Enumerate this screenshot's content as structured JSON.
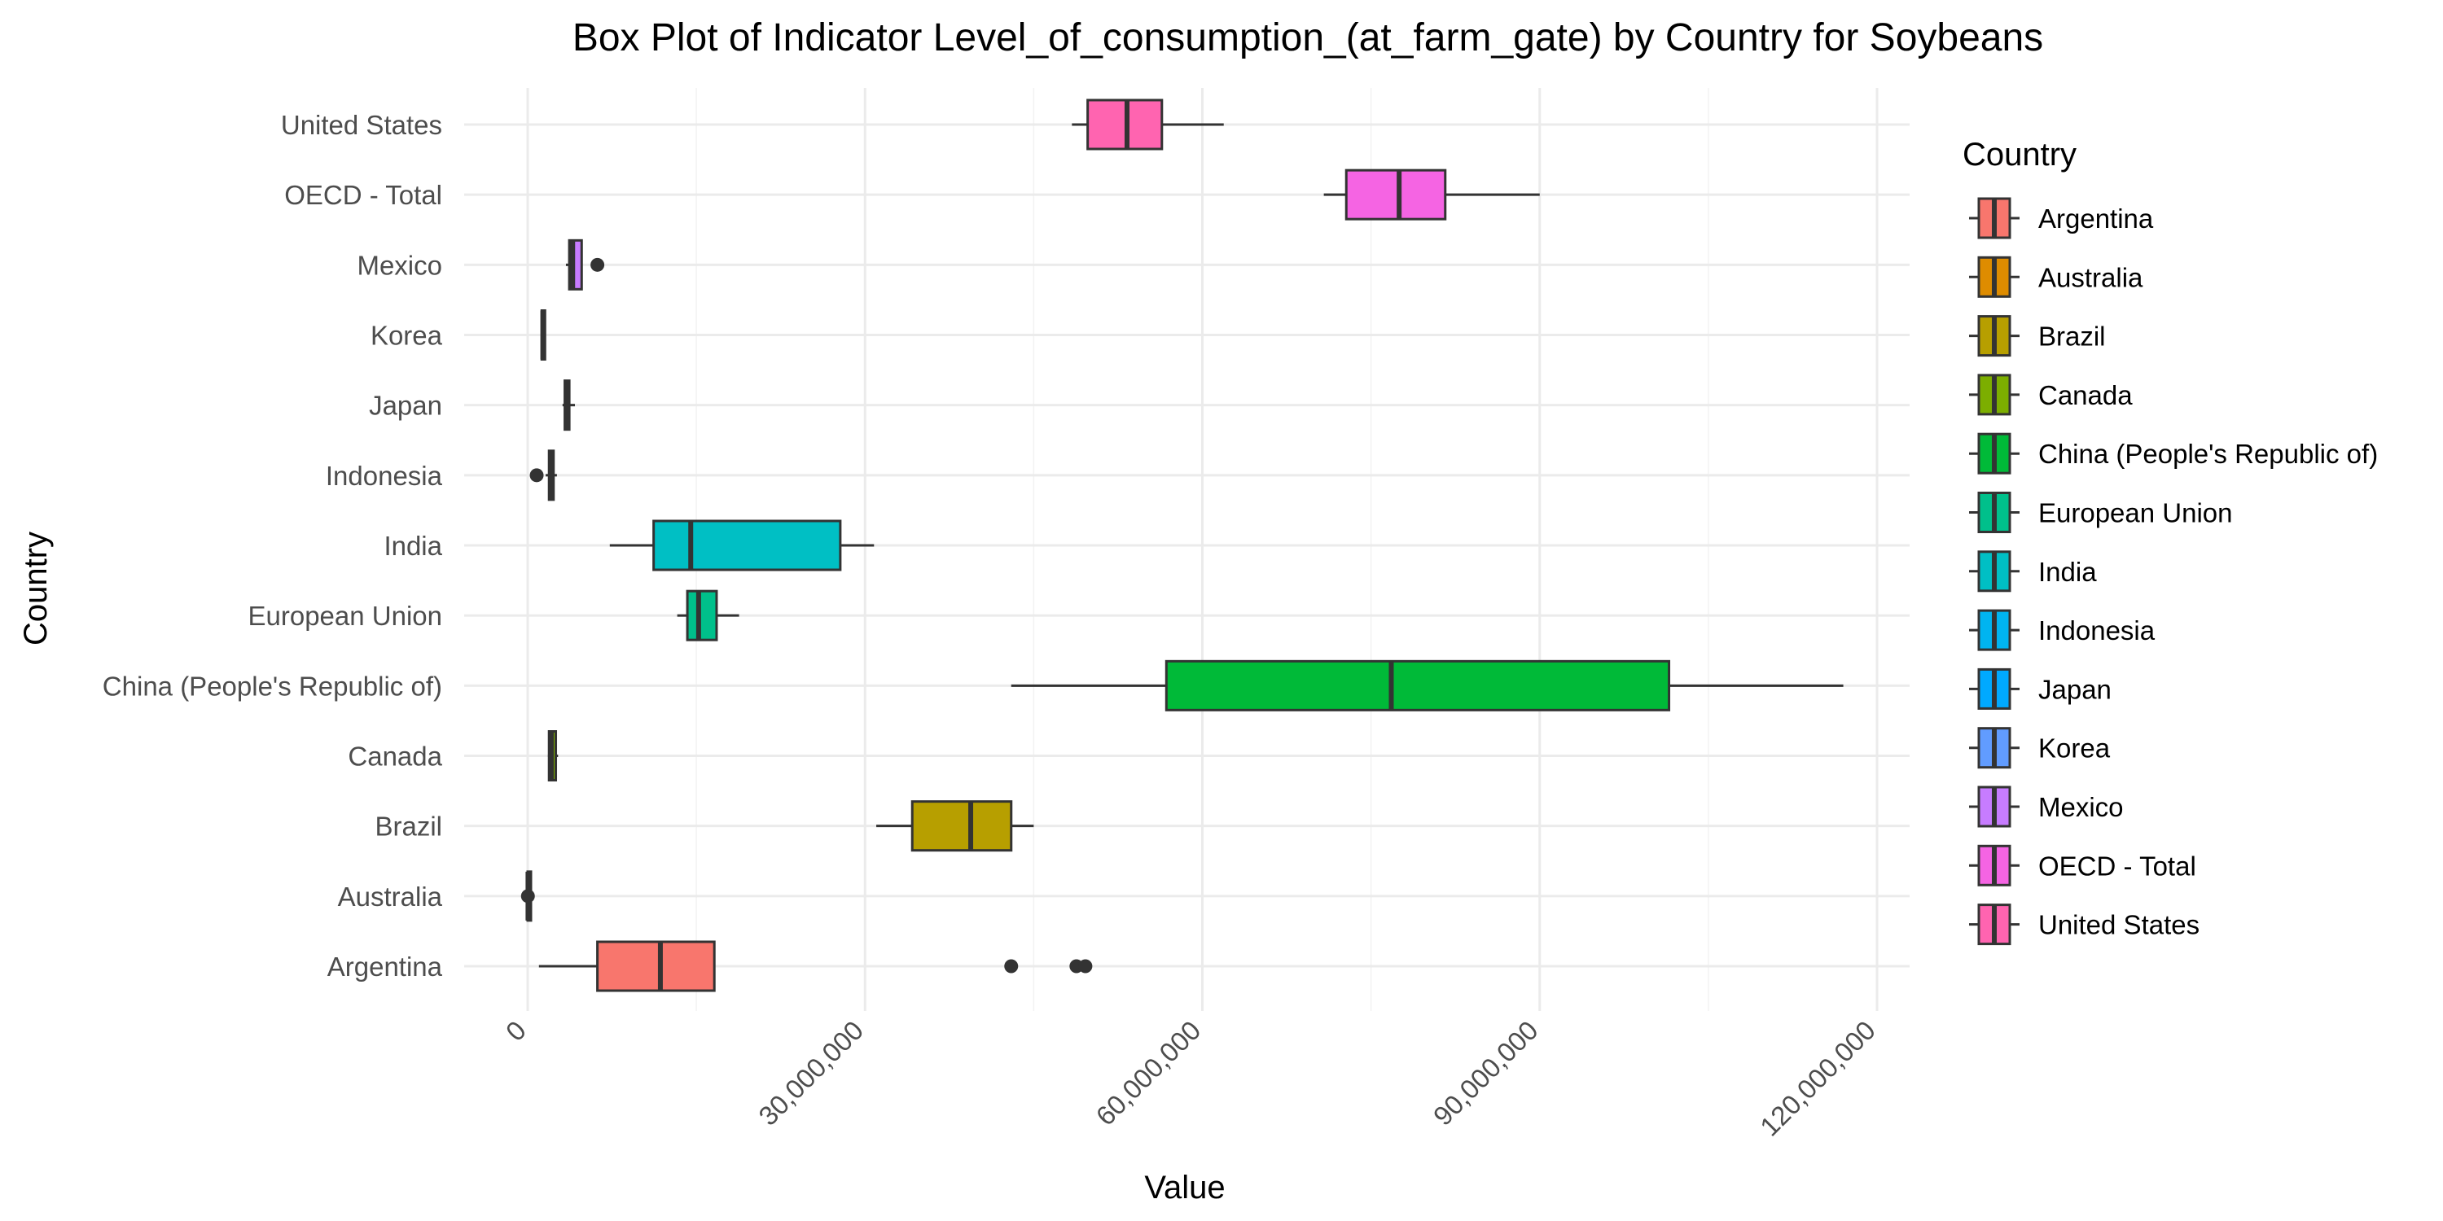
{
  "chart_data": {
    "type": "boxplot",
    "title": "Box Plot of Indicator Level_of_consumption_(at_farm_gate) by Country for Soybeans",
    "xlabel": "Value",
    "ylabel": "Country",
    "xlim": [
      -1000000,
      122000000
    ],
    "x_ticks": [
      0,
      30000000,
      60000000,
      90000000,
      120000000
    ],
    "x_tick_labels": [
      "0",
      "30,000,000",
      "60,000,000",
      "90,000,000",
      "120,000,000"
    ],
    "orientation": "horizontal",
    "grid": true,
    "legend_placement": "right",
    "legend_title": "Country",
    "series": [
      {
        "name": "Argentina",
        "color": "#F8766D",
        "whisker_low": 1000000,
        "q1": 6200000,
        "median": 11800000,
        "q3": 16600000,
        "whisker_high": 16600000,
        "outliers": [
          43000000,
          48800000,
          49600000
        ]
      },
      {
        "name": "Australia",
        "color": "#DE8C00",
        "whisker_low": 0,
        "q1": 0,
        "median": 30000,
        "q3": 60000,
        "whisker_high": 100000,
        "outliers": [
          20000
        ]
      },
      {
        "name": "Brazil",
        "color": "#B79F00",
        "whisker_low": 31000000,
        "q1": 34200000,
        "median": 39400000,
        "q3": 43000000,
        "whisker_high": 45000000,
        "outliers": []
      },
      {
        "name": "Canada",
        "color": "#7CAE00",
        "whisker_low": 1800000,
        "q1": 1900000,
        "median": 2100000,
        "q3": 2500000,
        "whisker_high": 2700000,
        "outliers": []
      },
      {
        "name": "China (People's Republic of)",
        "color": "#00BA38",
        "whisker_low": 43000000,
        "q1": 56800000,
        "median": 76800000,
        "q3": 101500000,
        "whisker_high": 117000000,
        "outliers": []
      },
      {
        "name": "European Union",
        "color": "#00C08B",
        "whisker_low": 13300000,
        "q1": 14200000,
        "median": 15200000,
        "q3": 16800000,
        "whisker_high": 18800000,
        "outliers": []
      },
      {
        "name": "India",
        "color": "#00BFC4",
        "whisker_low": 7300000,
        "q1": 11200000,
        "median": 14500000,
        "q3": 27800000,
        "whisker_high": 30800000,
        "outliers": []
      },
      {
        "name": "Indonesia",
        "color": "#00B4F0",
        "whisker_low": 1600000,
        "q1": 1900000,
        "median": 2100000,
        "q3": 2300000,
        "whisker_high": 2600000,
        "outliers": [
          800000
        ]
      },
      {
        "name": "Japan",
        "color": "#00A9FF",
        "whisker_low": 3100000,
        "q1": 3300000,
        "median": 3500000,
        "q3": 3700000,
        "whisker_high": 4200000,
        "outliers": []
      },
      {
        "name": "Korea",
        "color": "#619CFF",
        "whisker_low": 1200000,
        "q1": 1250000,
        "median": 1350000,
        "q3": 1450000,
        "whisker_high": 1500000,
        "outliers": []
      },
      {
        "name": "Mexico",
        "color": "#C77CFF",
        "whisker_low": 3400000,
        "q1": 3700000,
        "median": 4000000,
        "q3": 4800000,
        "whisker_high": 4800000,
        "outliers": [
          6200000
        ]
      },
      {
        "name": "OECD - Total",
        "color": "#F564E3",
        "whisker_low": 70800000,
        "q1": 72800000,
        "median": 77500000,
        "q3": 81600000,
        "whisker_high": 90000000,
        "outliers": []
      },
      {
        "name": "United States",
        "color": "#FF64B0",
        "whisker_low": 48400000,
        "q1": 49800000,
        "median": 53300000,
        "q3": 56400000,
        "whisker_high": 61900000,
        "outliers": []
      }
    ]
  }
}
